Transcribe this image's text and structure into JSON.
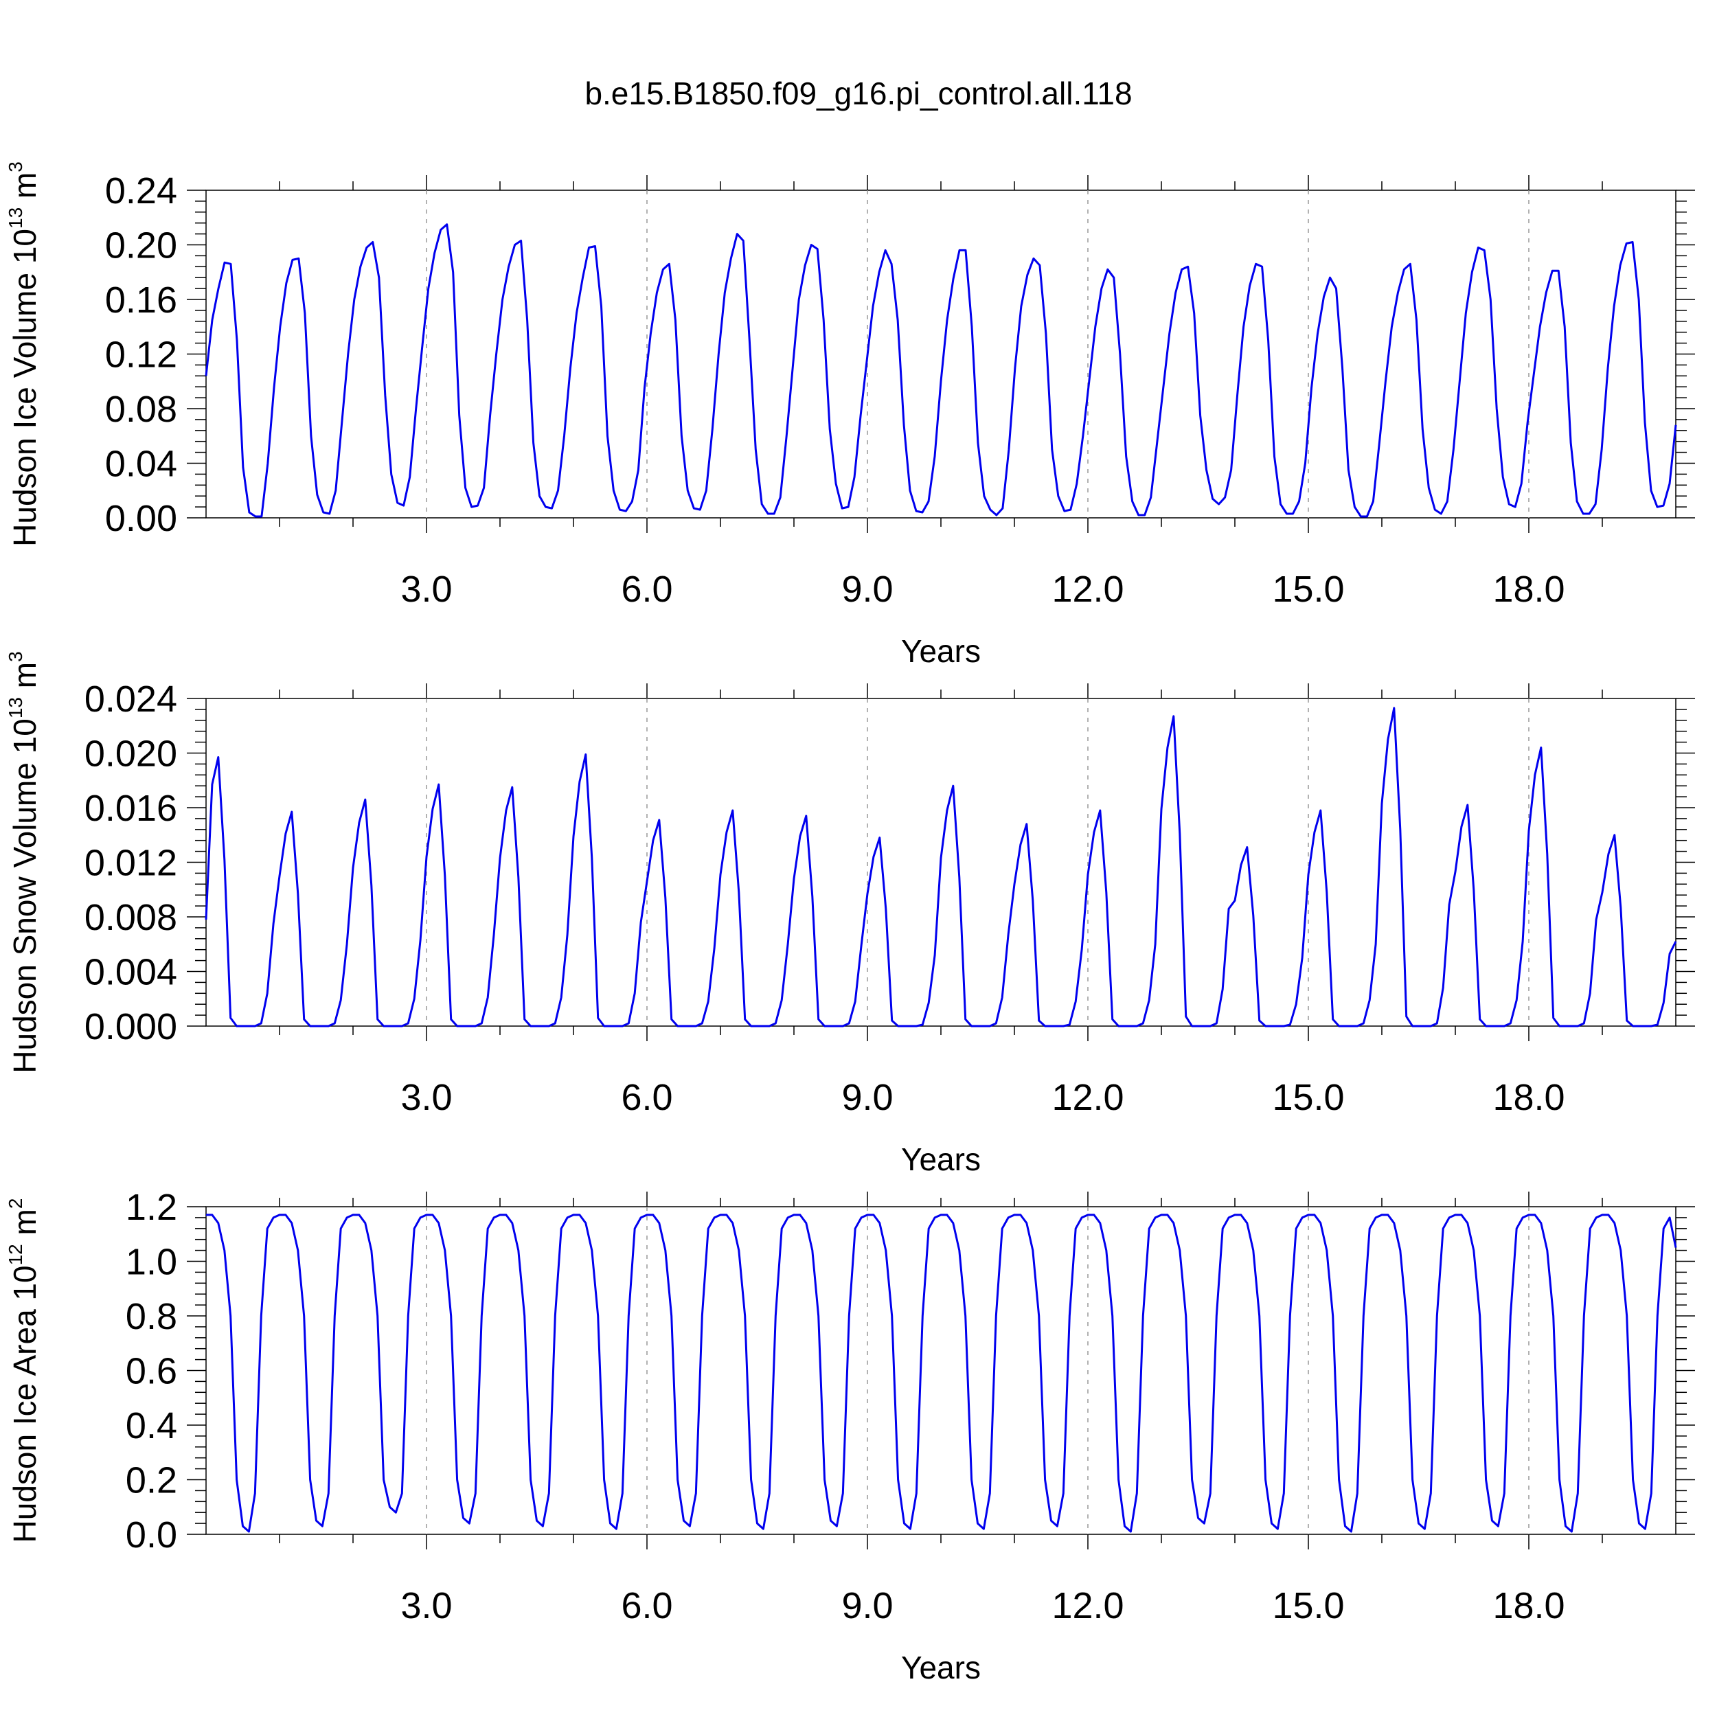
{
  "title": "b.e15.B1850.f09_g16.pi_control.all.118",
  "chart_data": [
    {
      "type": "line",
      "ylabel": "Hudson Ice Volume 10",
      "ylabel_exp": "13",
      "ylabel_unit": " m",
      "ylabel_unit_exp": "3",
      "xlabel": "Years",
      "xlim": [
        0.0,
        20.0
      ],
      "ylim": [
        0.0,
        0.24
      ],
      "x_ticks": [
        "3.0",
        "6.0",
        "9.0",
        "12.0",
        "15.0",
        "18.0"
      ],
      "y_ticks": [
        "0.00",
        "0.04",
        "0.08",
        "0.12",
        "0.16",
        "0.20",
        "0.24"
      ],
      "color": "#0000ee",
      "years": [
        {
          "rise": [
            0.104,
            0.145,
            0.168
          ],
          "peak": [
            0.187,
            0.186
          ],
          "fall": [
            0.13,
            0.037
          ],
          "trough": [
            0.004,
            0.001,
            0.001
          ]
        },
        {
          "rise": [
            0.04,
            0.095,
            0.14,
            0.172
          ],
          "peak": [
            0.189,
            0.19
          ],
          "fall": [
            0.15,
            0.06
          ],
          "trough": [
            0.017,
            0.004,
            0.003
          ]
        },
        {
          "rise": [
            0.02,
            0.07,
            0.12,
            0.16,
            0.184
          ],
          "peak": [
            0.198,
            0.202
          ],
          "fall": [
            0.176,
            0.09,
            0.032
          ],
          "trough": [
            0.011,
            0.009
          ]
        },
        {
          "rise": [
            0.03,
            0.08,
            0.125,
            0.168,
            0.194
          ],
          "peak": [
            0.211,
            0.215
          ],
          "fall": [
            0.18,
            0.075,
            0.022
          ],
          "trough": [
            0.008,
            0.009
          ]
        },
        {
          "rise": [
            0.022,
            0.075,
            0.12,
            0.16,
            0.184
          ],
          "peak": [
            0.2,
            0.203
          ],
          "fall": [
            0.145,
            0.055,
            0.016
          ],
          "trough": [
            0.008,
            0.007
          ]
        },
        {
          "rise": [
            0.02,
            0.06,
            0.11,
            0.15,
            0.176
          ],
          "peak": [
            0.198,
            0.199
          ],
          "fall": [
            0.155,
            0.06,
            0.02
          ],
          "trough": [
            0.006,
            0.005
          ]
        },
        {
          "rise": [
            0.012,
            0.035,
            0.095,
            0.135,
            0.165
          ],
          "peak": [
            0.182,
            0.186
          ],
          "fall": [
            0.145,
            0.06,
            0.02
          ],
          "trough": [
            0.007,
            0.006
          ]
        },
        {
          "rise": [
            0.02,
            0.065,
            0.12,
            0.165,
            0.19
          ],
          "peak": [
            0.208,
            0.203
          ],
          "fall": [
            0.13,
            0.05,
            0.01
          ],
          "trough": [
            0.003,
            0.003
          ]
        },
        {
          "rise": [
            0.015,
            0.06,
            0.11,
            0.16,
            0.185
          ],
          "peak": [
            0.2,
            0.197
          ],
          "fall": [
            0.145,
            0.065,
            0.025
          ],
          "trough": [
            0.007,
            0.008
          ]
        },
        {
          "rise": [
            0.03,
            0.075,
            0.115,
            0.155,
            0.18
          ],
          "peak": [
            0.196,
            0.186
          ],
          "fall": [
            0.145,
            0.068,
            0.02
          ],
          "trough": [
            0.005,
            0.004
          ]
        },
        {
          "rise": [
            0.012,
            0.045,
            0.1,
            0.145,
            0.175
          ],
          "peak": [
            0.196,
            0.196
          ],
          "fall": [
            0.14,
            0.055,
            0.016
          ],
          "trough": [
            0.006,
            0.002
          ]
        },
        {
          "rise": [
            0.007,
            0.05,
            0.11,
            0.155,
            0.178
          ],
          "peak": [
            0.19,
            0.185
          ],
          "fall": [
            0.135,
            0.05,
            0.016
          ],
          "trough": [
            0.005,
            0.006
          ]
        },
        {
          "rise": [
            0.025,
            0.06,
            0.1,
            0.14,
            0.168
          ],
          "peak": [
            0.182,
            0.176
          ],
          "fall": [
            0.12,
            0.045,
            0.012
          ],
          "trough": [
            0.002,
            0.002
          ]
        },
        {
          "rise": [
            0.015,
            0.055,
            0.095,
            0.135,
            0.165
          ],
          "peak": [
            0.182,
            0.184
          ],
          "fall": [
            0.15,
            0.075,
            0.035
          ],
          "trough": [
            0.014,
            0.01
          ]
        },
        {
          "rise": [
            0.015,
            0.035,
            0.09,
            0.14,
            0.17
          ],
          "peak": [
            0.186,
            0.184
          ],
          "fall": [
            0.13,
            0.045,
            0.01
          ],
          "trough": [
            0.003,
            0.003
          ]
        },
        {
          "rise": [
            0.012,
            0.04,
            0.095,
            0.135,
            0.162
          ],
          "peak": [
            0.176,
            0.168
          ],
          "fall": [
            0.11,
            0.035,
            0.008
          ],
          "trough": [
            0.001,
            0.001
          ]
        },
        {
          "rise": [
            0.012,
            0.055,
            0.1,
            0.14,
            0.165
          ],
          "peak": [
            0.182,
            0.186
          ],
          "fall": [
            0.145,
            0.065,
            0.022
          ],
          "trough": [
            0.006,
            0.003
          ]
        },
        {
          "rise": [
            0.012,
            0.05,
            0.1,
            0.15,
            0.18
          ],
          "peak": [
            0.198,
            0.196
          ],
          "fall": [
            0.16,
            0.08,
            0.03
          ],
          "trough": [
            0.01,
            0.008
          ]
        },
        {
          "rise": [
            0.025,
            0.07,
            0.105,
            0.14,
            0.165
          ],
          "peak": [
            0.181,
            0.181
          ],
          "fall": [
            0.14,
            0.055,
            0.012
          ],
          "trough": [
            0.003,
            0.003
          ]
        },
        {
          "rise": [
            0.01,
            0.05,
            0.11,
            0.155,
            0.185
          ],
          "peak": [
            0.201,
            0.202
          ],
          "fall": [
            0.16,
            0.07,
            0.02
          ],
          "trough": [
            0.008,
            0.009
          ]
        }
      ],
      "end": [
        0.025,
        0.068
      ]
    },
    {
      "type": "line",
      "ylabel": "Hudson Snow Volume 10",
      "ylabel_exp": "13",
      "ylabel_unit": " m",
      "ylabel_unit_exp": "3",
      "xlabel": "Years",
      "xlim": [
        0.0,
        20.0
      ],
      "ylim": [
        0.0,
        0.024
      ],
      "x_ticks": [
        "3.0",
        "6.0",
        "9.0",
        "12.0",
        "15.0",
        "18.0"
      ],
      "y_ticks": [
        "0.000",
        "0.004",
        "0.008",
        "0.012",
        "0.016",
        "0.020",
        "0.024"
      ],
      "color": "#0000ee",
      "peaks": [
        0.0197,
        0.0157,
        0.0166,
        0.0177,
        0.0175,
        0.0199,
        0.0151,
        0.0158,
        0.0154,
        0.0138,
        0.0176,
        0.0148,
        0.0158,
        0.0227,
        0.0131,
        0.0158,
        0.0233,
        0.0162,
        0.0204,
        0.014
      ],
      "start": 0.0078,
      "end": 0.0062
    },
    {
      "type": "line",
      "ylabel": "Hudson Ice Area 10",
      "ylabel_exp": "12",
      "ylabel_unit": " m",
      "ylabel_unit_exp": "2",
      "xlabel": "Years",
      "xlim": [
        0.0,
        20.0
      ],
      "ylim": [
        0.0,
        1.2
      ],
      "x_ticks": [
        "3.0",
        "6.0",
        "9.0",
        "12.0",
        "15.0",
        "18.0"
      ],
      "y_ticks": [
        "0.0",
        "0.2",
        "0.4",
        "0.6",
        "0.8",
        "1.0",
        "1.2"
      ],
      "color": "#0000ee",
      "minima": [
        0.01,
        0.03,
        0.08,
        0.04,
        0.03,
        0.02,
        0.03,
        0.02,
        0.03,
        0.02,
        0.02,
        0.03,
        0.01,
        0.04,
        0.02,
        0.01,
        0.02,
        0.03,
        0.01,
        0.02
      ],
      "start": 1.17,
      "end": 1.05
    }
  ]
}
